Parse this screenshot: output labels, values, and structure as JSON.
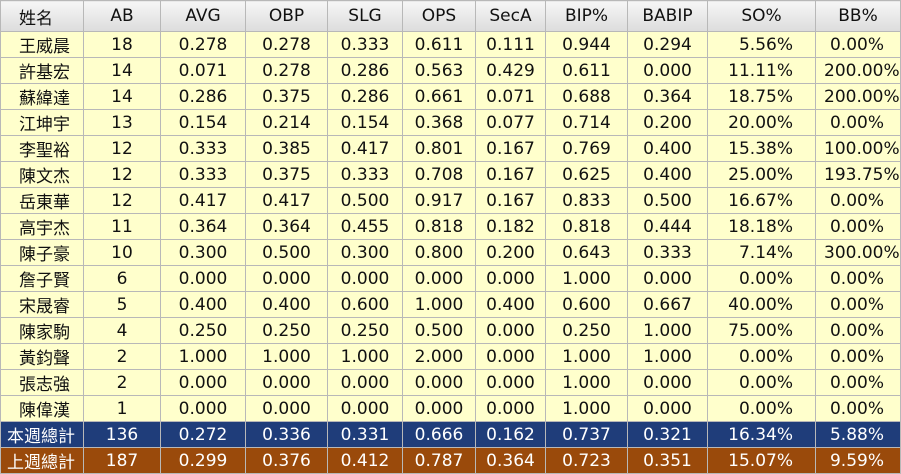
{
  "table": {
    "header": [
      "姓名",
      "AB",
      "AVG",
      "OBP",
      "SLG",
      "OPS",
      "SecA",
      "BIP%",
      "BABIP",
      "SO%",
      "BB%"
    ],
    "rows": [
      [
        "王威晨",
        "18",
        "0.278",
        "0.278",
        "0.333",
        "0.611",
        "0.111",
        "0.944",
        "0.294",
        "5.56%",
        "0.00%"
      ],
      [
        "許基宏",
        "14",
        "0.071",
        "0.278",
        "0.286",
        "0.563",
        "0.429",
        "0.611",
        "0.000",
        "11.11%",
        "200.00%"
      ],
      [
        "蘇緯達",
        "14",
        "0.286",
        "0.375",
        "0.286",
        "0.661",
        "0.071",
        "0.688",
        "0.364",
        "18.75%",
        "200.00%"
      ],
      [
        "江坤宇",
        "13",
        "0.154",
        "0.214",
        "0.154",
        "0.368",
        "0.077",
        "0.714",
        "0.200",
        "20.00%",
        "0.00%"
      ],
      [
        "李聖裕",
        "12",
        "0.333",
        "0.385",
        "0.417",
        "0.801",
        "0.167",
        "0.769",
        "0.400",
        "15.38%",
        "100.00%"
      ],
      [
        "陳文杰",
        "12",
        "0.333",
        "0.375",
        "0.333",
        "0.708",
        "0.167",
        "0.625",
        "0.400",
        "25.00%",
        "193.75%"
      ],
      [
        "岳東華",
        "12",
        "0.417",
        "0.417",
        "0.500",
        "0.917",
        "0.167",
        "0.833",
        "0.500",
        "16.67%",
        "0.00%"
      ],
      [
        "高宇杰",
        "11",
        "0.364",
        "0.364",
        "0.455",
        "0.818",
        "0.182",
        "0.818",
        "0.444",
        "18.18%",
        "0.00%"
      ],
      [
        "陳子豪",
        "10",
        "0.300",
        "0.500",
        "0.300",
        "0.800",
        "0.200",
        "0.643",
        "0.333",
        "7.14%",
        "300.00%"
      ],
      [
        "詹子賢",
        "6",
        "0.000",
        "0.000",
        "0.000",
        "0.000",
        "0.000",
        "1.000",
        "0.000",
        "0.00%",
        "0.00%"
      ],
      [
        "宋晟睿",
        "5",
        "0.400",
        "0.400",
        "0.600",
        "1.000",
        "0.400",
        "0.600",
        "0.667",
        "40.00%",
        "0.00%"
      ],
      [
        "陳家駒",
        "4",
        "0.250",
        "0.250",
        "0.250",
        "0.500",
        "0.000",
        "0.250",
        "1.000",
        "75.00%",
        "0.00%"
      ],
      [
        "黃鈞聲",
        "2",
        "1.000",
        "1.000",
        "1.000",
        "2.000",
        "0.000",
        "1.000",
        "1.000",
        "0.00%",
        "0.00%"
      ],
      [
        "張志強",
        "2",
        "0.000",
        "0.000",
        "0.000",
        "0.000",
        "0.000",
        "1.000",
        "0.000",
        "0.00%",
        "0.00%"
      ],
      [
        "陳偉漢",
        "1",
        "0.000",
        "0.000",
        "0.000",
        "0.000",
        "0.000",
        "1.000",
        "0.000",
        "0.00%",
        "0.00%"
      ]
    ],
    "totals": [
      [
        "本週總計",
        "136",
        "0.272",
        "0.336",
        "0.331",
        "0.666",
        "0.162",
        "0.737",
        "0.321",
        "16.34%",
        "5.88%"
      ],
      [
        "上週總計",
        "187",
        "0.299",
        "0.376",
        "0.412",
        "0.787",
        "0.364",
        "0.723",
        "0.351",
        "15.07%",
        "9.59%"
      ]
    ]
  }
}
